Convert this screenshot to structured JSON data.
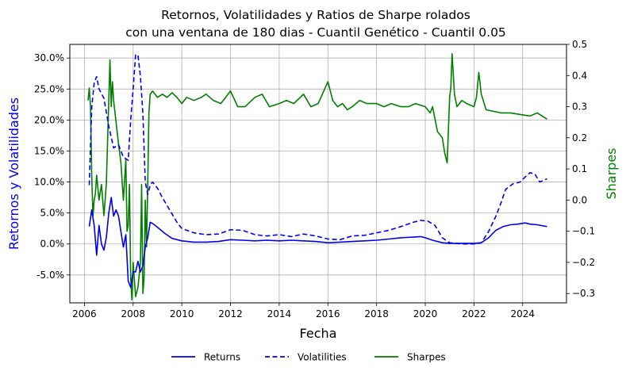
{
  "chart_data": {
    "type": "line",
    "title": "Retornos, Volatilidades y Ratios de Sharpe rolados",
    "subtitle": "con una ventana de 180 dias - Cuantil Genético - Cuantil 0.05",
    "xlabel": "Fecha",
    "ylabel_left": "Retornos y Volatilidades",
    "ylabel_right": "Sharpes",
    "xlim": [
      2005.4,
      2025.8
    ],
    "ylim_left": [
      -0.095,
      0.322
    ],
    "ylim_right": [
      -0.33,
      0.5
    ],
    "x_ticks": [
      2006,
      2008,
      2010,
      2012,
      2014,
      2016,
      2018,
      2020,
      2022,
      2024
    ],
    "y_left_ticks": [
      -0.05,
      0.0,
      0.05,
      0.1,
      0.15,
      0.2,
      0.25,
      0.3
    ],
    "y_left_tick_labels": [
      "-5.0%",
      "0.0%",
      "5.0%",
      "10.0%",
      "15.0%",
      "20.0%",
      "25.0%",
      "30.0%"
    ],
    "y_right_ticks": [
      -0.3,
      -0.2,
      -0.1,
      0.0,
      0.1,
      0.2,
      0.3,
      0.4,
      0.5
    ],
    "y_right_tick_labels": [
      "−0.3",
      "−0.2",
      "−0.1",
      "0.0",
      "0.1",
      "0.2",
      "0.3",
      "0.4",
      "0.5"
    ],
    "grid": true,
    "legend_position": "bottom-center",
    "series": [
      {
        "name": "Returns",
        "axis": "left",
        "color": "#0000ee",
        "style": "solid",
        "x": [
          2006.2,
          2006.3,
          2006.4,
          2006.5,
          2006.6,
          2006.7,
          2006.8,
          2006.9,
          2007.0,
          2007.1,
          2007.2,
          2007.3,
          2007.4,
          2007.5,
          2007.6,
          2007.7,
          2007.8,
          2007.9,
          2008.0,
          2008.1,
          2008.2,
          2008.3,
          2008.4,
          2008.5,
          2008.6,
          2008.7,
          2008.8,
          2009.0,
          2009.3,
          2009.6,
          2010.0,
          2010.5,
          2011.0,
          2011.5,
          2012.0,
          2012.5,
          2013.0,
          2013.5,
          2014.0,
          2014.5,
          2015.0,
          2015.5,
          2016.0,
          2016.5,
          2017.0,
          2017.5,
          2018.0,
          2018.5,
          2019.0,
          2019.5,
          2019.8,
          2020.0,
          2020.3,
          2020.7,
          2021.0,
          2021.5,
          2022.0,
          2022.3,
          2022.6,
          2022.9,
          2023.2,
          2023.5,
          2023.8,
          2024.1,
          2024.3,
          2024.6,
          2025.0
        ],
        "y": [
          0.028,
          0.055,
          0.03,
          -0.018,
          0.03,
          0.0,
          -0.01,
          0.01,
          0.05,
          0.075,
          0.045,
          0.055,
          0.045,
          0.02,
          -0.005,
          0.015,
          -0.06,
          -0.07,
          -0.045,
          -0.045,
          -0.028,
          -0.045,
          -0.035,
          -0.005,
          0.01,
          0.035,
          0.033,
          0.027,
          0.017,
          0.009,
          0.005,
          0.003,
          0.003,
          0.004,
          0.007,
          0.006,
          0.005,
          0.006,
          0.005,
          0.006,
          0.005,
          0.004,
          0.002,
          0.003,
          0.004,
          0.005,
          0.006,
          0.008,
          0.01,
          0.011,
          0.012,
          0.01,
          0.006,
          0.002,
          0.001,
          0.001,
          0.001,
          0.002,
          0.01,
          0.022,
          0.028,
          0.031,
          0.032,
          0.034,
          0.032,
          0.031,
          0.028
        ]
      },
      {
        "name": "Volatilities",
        "axis": "left",
        "color": "#0000ee",
        "style": "dashed",
        "x": [
          2006.2,
          2006.3,
          2006.4,
          2006.5,
          2006.6,
          2006.8,
          2007.0,
          2007.2,
          2007.4,
          2007.6,
          2007.8,
          2007.9,
          2008.0,
          2008.1,
          2008.2,
          2008.3,
          2008.4,
          2008.5,
          2008.6,
          2008.7,
          2008.8,
          2009.0,
          2009.2,
          2009.5,
          2009.8,
          2010.0,
          2010.5,
          2011.0,
          2011.5,
          2012.0,
          2012.5,
          2013.0,
          2013.5,
          2014.0,
          2014.5,
          2015.0,
          2015.5,
          2016.0,
          2016.5,
          2017.0,
          2017.5,
          2018.0,
          2018.5,
          2019.0,
          2019.5,
          2019.8,
          2020.1,
          2020.4,
          2020.7,
          2021.0,
          2021.5,
          2022.0,
          2022.3,
          2022.6,
          2022.9,
          2023.1,
          2023.3,
          2023.6,
          2023.9,
          2024.1,
          2024.3,
          2024.5,
          2024.7,
          2025.0
        ],
        "y": [
          0.095,
          0.22,
          0.26,
          0.27,
          0.25,
          0.235,
          0.19,
          0.155,
          0.16,
          0.14,
          0.135,
          0.2,
          0.25,
          0.305,
          0.305,
          0.27,
          0.21,
          0.1,
          0.08,
          0.095,
          0.1,
          0.09,
          0.075,
          0.055,
          0.035,
          0.025,
          0.018,
          0.015,
          0.016,
          0.023,
          0.022,
          0.015,
          0.013,
          0.015,
          0.012,
          0.016,
          0.013,
          0.008,
          0.007,
          0.013,
          0.014,
          0.018,
          0.022,
          0.028,
          0.035,
          0.038,
          0.037,
          0.03,
          0.01,
          0.002,
          0.0,
          0.0,
          0.002,
          0.02,
          0.045,
          0.065,
          0.088,
          0.097,
          0.1,
          0.108,
          0.115,
          0.113,
          0.1,
          0.105
        ]
      },
      {
        "name": "Sharpes",
        "axis": "right",
        "color": "#007f00",
        "style": "solid",
        "x": [
          2006.15,
          2006.2,
          2006.25,
          2006.3,
          2006.35,
          2006.4,
          2006.45,
          2006.5,
          2006.55,
          2006.6,
          2006.7,
          2006.8,
          2006.9,
          2007.0,
          2007.05,
          2007.1,
          2007.15,
          2007.2,
          2007.3,
          2007.4,
          2007.5,
          2007.6,
          2007.7,
          2007.75,
          2007.8,
          2007.85,
          2007.9,
          2007.95,
          2008.0,
          2008.1,
          2008.2,
          2008.3,
          2008.35,
          2008.4,
          2008.45,
          2008.5,
          2008.55,
          2008.6,
          2008.65,
          2008.7,
          2008.8,
          2009.0,
          2009.2,
          2009.4,
          2009.6,
          2009.8,
          2010.0,
          2010.2,
          2010.5,
          2010.8,
          2011.0,
          2011.3,
          2011.6,
          2012.0,
          2012.3,
          2012.6,
          2013.0,
          2013.3,
          2013.6,
          2014.0,
          2014.3,
          2014.6,
          2015.0,
          2015.3,
          2015.6,
          2016.0,
          2016.2,
          2016.4,
          2016.6,
          2016.8,
          2017.0,
          2017.3,
          2017.6,
          2018.0,
          2018.3,
          2018.6,
          2019.0,
          2019.3,
          2019.6,
          2020.0,
          2020.2,
          2020.3,
          2020.5,
          2020.7,
          2020.8,
          2020.9,
          2021.0,
          2021.05,
          2021.1,
          2021.2,
          2021.3,
          2021.5,
          2021.7,
          2022.0,
          2022.1,
          2022.2,
          2022.3,
          2022.5,
          2022.8,
          2023.1,
          2023.5,
          2023.9,
          2024.3,
          2024.6,
          2024.8,
          2025.0
        ],
        "y": [
          0.32,
          0.36,
          0.3,
          0.08,
          -0.05,
          0.0,
          0.02,
          0.08,
          0.04,
          0.0,
          0.05,
          -0.05,
          0.05,
          0.32,
          0.45,
          0.3,
          0.38,
          0.32,
          0.25,
          0.18,
          0.12,
          0.0,
          0.13,
          -0.1,
          -0.08,
          0.05,
          -0.25,
          -0.32,
          -0.2,
          -0.31,
          -0.28,
          -0.2,
          0.05,
          -0.3,
          -0.25,
          0.0,
          -0.15,
          0.05,
          0.28,
          0.34,
          0.35,
          0.33,
          0.34,
          0.33,
          0.345,
          0.33,
          0.31,
          0.33,
          0.32,
          0.33,
          0.34,
          0.32,
          0.31,
          0.35,
          0.3,
          0.3,
          0.33,
          0.34,
          0.3,
          0.31,
          0.32,
          0.31,
          0.34,
          0.3,
          0.31,
          0.38,
          0.32,
          0.3,
          0.31,
          0.29,
          0.3,
          0.32,
          0.31,
          0.31,
          0.3,
          0.31,
          0.3,
          0.3,
          0.31,
          0.3,
          0.28,
          0.3,
          0.22,
          0.2,
          0.15,
          0.12,
          0.33,
          0.36,
          0.47,
          0.34,
          0.3,
          0.32,
          0.31,
          0.3,
          0.33,
          0.41,
          0.34,
          0.29,
          0.285,
          0.28,
          0.28,
          0.275,
          0.27,
          0.28,
          0.27,
          0.26
        ]
      }
    ]
  }
}
